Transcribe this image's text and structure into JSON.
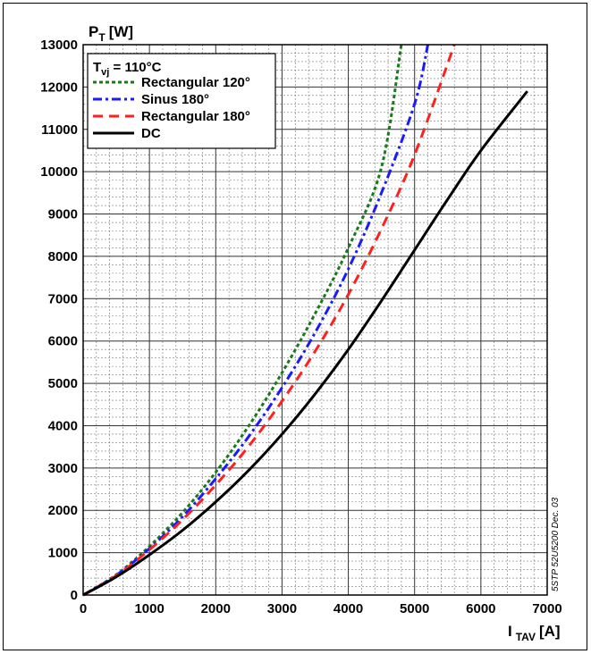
{
  "chart_data": {
    "type": "line",
    "title": "",
    "ylabel_main": "P",
    "ylabel_sub": "T",
    "ylabel_unit": "[W]",
    "xlabel_main": "I",
    "xlabel_sub": "TAV",
    "xlabel_unit": "[A]",
    "xlim": [
      0,
      7000
    ],
    "ylim": [
      0,
      13000
    ],
    "xticks": [
      0,
      1000,
      2000,
      3000,
      4000,
      5000,
      6000,
      7000
    ],
    "yticks": [
      0,
      1000,
      2000,
      3000,
      4000,
      5000,
      6000,
      7000,
      8000,
      9000,
      10000,
      11000,
      12000,
      13000
    ],
    "grid": true,
    "legend_placement": "top-left",
    "legend_header_main": "T",
    "legend_header_sub": "vj",
    "legend_header_rest": " = 110°C",
    "side_note": "5STP 52U5200 Dec. 03",
    "series": [
      {
        "name": "Rectangular 120°",
        "color": "#1a7a1a",
        "dash": "dotted",
        "points": [
          [
            0,
            0
          ],
          [
            500,
            480
          ],
          [
            1000,
            1150
          ],
          [
            1500,
            1950
          ],
          [
            2000,
            2900
          ],
          [
            2500,
            4000
          ],
          [
            3000,
            5250
          ],
          [
            3500,
            6650
          ],
          [
            4000,
            8200
          ],
          [
            4500,
            10100
          ],
          [
            4800,
            13000
          ]
        ]
      },
      {
        "name": "Sinus 180°",
        "color": "#1a1aff",
        "dash": "dash-dot",
        "points": [
          [
            0,
            0
          ],
          [
            500,
            470
          ],
          [
            1000,
            1100
          ],
          [
            1500,
            1850
          ],
          [
            2000,
            2750
          ],
          [
            2500,
            3750
          ],
          [
            3000,
            4900
          ],
          [
            3500,
            6200
          ],
          [
            4000,
            7700
          ],
          [
            4500,
            9500
          ],
          [
            5000,
            11600
          ],
          [
            5200,
            13000
          ]
        ]
      },
      {
        "name": "Rectangular 180°",
        "color": "#ff2020",
        "dash": "dashed",
        "points": [
          [
            0,
            0
          ],
          [
            500,
            460
          ],
          [
            1000,
            1070
          ],
          [
            1500,
            1780
          ],
          [
            2000,
            2600
          ],
          [
            2500,
            3520
          ],
          [
            3000,
            4580
          ],
          [
            3500,
            5760
          ],
          [
            4000,
            7100
          ],
          [
            4500,
            8650
          ],
          [
            5000,
            10400
          ],
          [
            5600,
            13000
          ]
        ]
      },
      {
        "name": "DC",
        "color": "#000000",
        "dash": "solid",
        "points": [
          [
            0,
            0
          ],
          [
            500,
            430
          ],
          [
            1000,
            950
          ],
          [
            1500,
            1530
          ],
          [
            2000,
            2200
          ],
          [
            2500,
            2950
          ],
          [
            3000,
            3800
          ],
          [
            3500,
            4750
          ],
          [
            4000,
            5800
          ],
          [
            4500,
            6950
          ],
          [
            5000,
            8150
          ],
          [
            5500,
            9350
          ],
          [
            6000,
            10500
          ],
          [
            6700,
            11900
          ]
        ]
      }
    ]
  }
}
